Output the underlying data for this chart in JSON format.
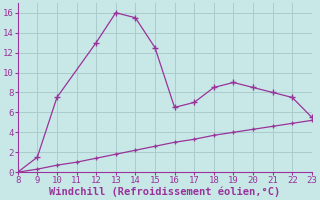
{
  "x_upper": [
    8,
    9,
    10,
    12,
    13,
    14,
    15,
    16,
    17,
    18,
    19,
    20,
    21,
    22,
    23
  ],
  "y_upper": [
    0.0,
    1.5,
    7.5,
    13.0,
    16.0,
    15.5,
    12.5,
    6.5,
    7.0,
    8.5,
    9.0,
    8.5,
    8.0,
    7.5,
    5.5
  ],
  "x_lower": [
    8,
    9,
    10,
    11,
    12,
    13,
    14,
    15,
    16,
    17,
    18,
    19,
    20,
    21,
    22,
    23
  ],
  "y_lower": [
    0.0,
    0.3,
    0.7,
    1.0,
    1.4,
    1.8,
    2.2,
    2.6,
    3.0,
    3.3,
    3.7,
    4.0,
    4.3,
    4.6,
    4.9,
    5.2
  ],
  "line_color": "#993399",
  "background_color": "#c8e8e8",
  "grid_color": "#aacccc",
  "xlabel": "Windchill (Refroidissement éolien,°C)",
  "xlim": [
    8,
    23
  ],
  "ylim": [
    0,
    17
  ],
  "xticks": [
    8,
    9,
    10,
    11,
    12,
    13,
    14,
    15,
    16,
    17,
    18,
    19,
    20,
    21,
    22,
    23
  ],
  "yticks": [
    0,
    2,
    4,
    6,
    8,
    10,
    12,
    14,
    16
  ],
  "xlabel_fontsize": 7.5,
  "tick_fontsize": 6.5
}
